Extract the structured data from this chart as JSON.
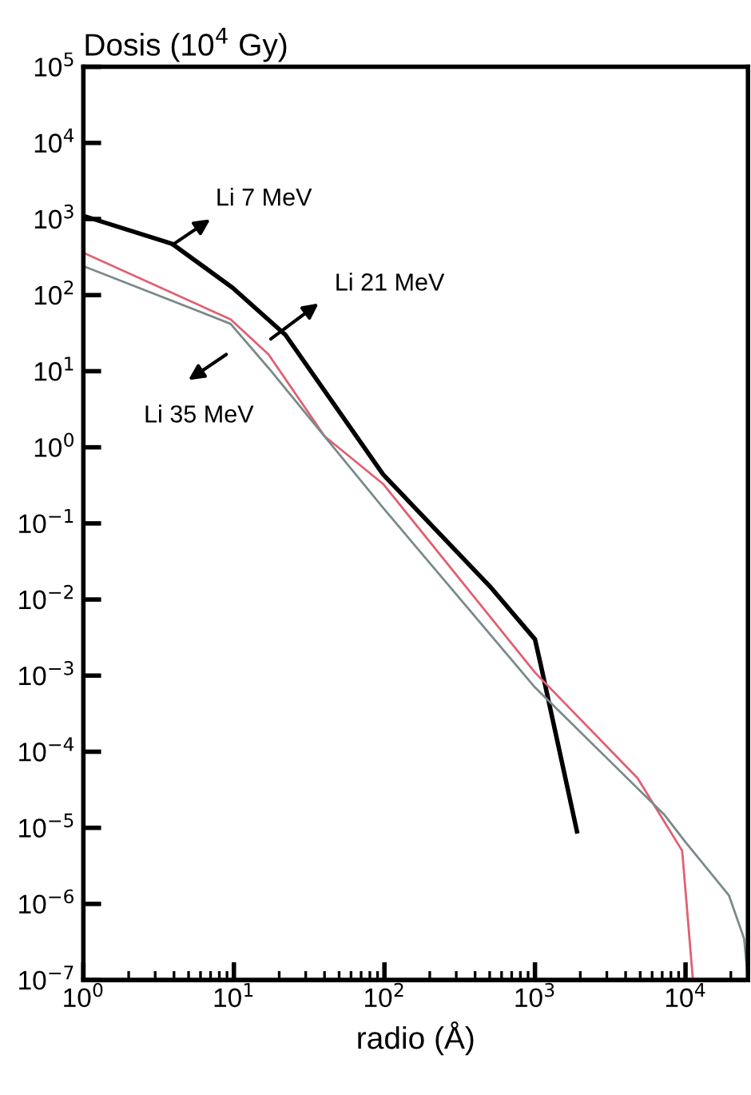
{
  "chart_data": {
    "type": "line",
    "ylabel": "Dosis (10$^{4}$ Gy)",
    "xlabel": "radio (Å)",
    "log": "xy",
    "xlim": [
      1,
      26000
    ],
    "ylim": [
      1e-07,
      100000
    ],
    "xticks": [
      {
        "value": 1,
        "label": "10$^{0}$"
      },
      {
        "value": 10,
        "label": "10$^{1}$"
      },
      {
        "value": 100,
        "label": "10$^{2}$"
      },
      {
        "value": 1000,
        "label": "10$^{3}$"
      },
      {
        "value": 10000,
        "label": "10$^{4}$"
      }
    ],
    "yticks": [
      {
        "value": 1e-07,
        "label": "10$^{−7}$"
      },
      {
        "value": 1e-06,
        "label": "10$^{−6}$"
      },
      {
        "value": 1e-05,
        "label": "10$^{−5}$"
      },
      {
        "value": 0.0001,
        "label": "10$^{−4}$"
      },
      {
        "value": 0.001,
        "label": "10$^{−3}$"
      },
      {
        "value": 0.01,
        "label": "10$^{−2}$"
      },
      {
        "value": 0.1,
        "label": "10$^{−1}$"
      },
      {
        "value": 1,
        "label": "10$^{0}$"
      },
      {
        "value": 10,
        "label": "10$^{1}$"
      },
      {
        "value": 100,
        "label": "10$^{2}$"
      },
      {
        "value": 1000,
        "label": "10$^{3}$"
      },
      {
        "value": 10000,
        "label": "10$^{4}$"
      },
      {
        "value": 100000,
        "label": "10$^{5}$"
      }
    ],
    "grid": false,
    "legend": false,
    "marker": "none",
    "line_style": "solid",
    "series": [
      {
        "color": "#000000",
        "x": [
          1,
          3.9,
          9.8,
          22,
          98,
          500,
          1000,
          1100,
          1900
        ],
        "values": [
          1100,
          470,
          125,
          30,
          0.44,
          0.015,
          0.003,
          0.0013,
          9e-06
        ]
      },
      {
        "color": "#e06070",
        "x": [
          1,
          9.5,
          17,
          40,
          98,
          1000,
          4800,
          9500,
          11200
        ],
        "values": [
          360,
          48,
          16.6,
          1.4,
          0.33,
          0.0011,
          4.5e-05,
          5e-06,
          1e-07
        ]
      },
      {
        "color": "#7a8a8a",
        "x": [
          1,
          9.5,
          17,
          98,
          1000,
          7200,
          10000,
          19400,
          24500,
          26000
        ],
        "values": [
          240,
          42,
          11,
          0.16,
          0.0007,
          1.5e-05,
          6.5e-06,
          1.3e-06,
          3.5e-07,
          1e-07
        ]
      }
    ],
    "annotations": [
      "Li 7 MeV",
      "Li 21 MeV",
      "Li 35 MeV"
    ]
  }
}
